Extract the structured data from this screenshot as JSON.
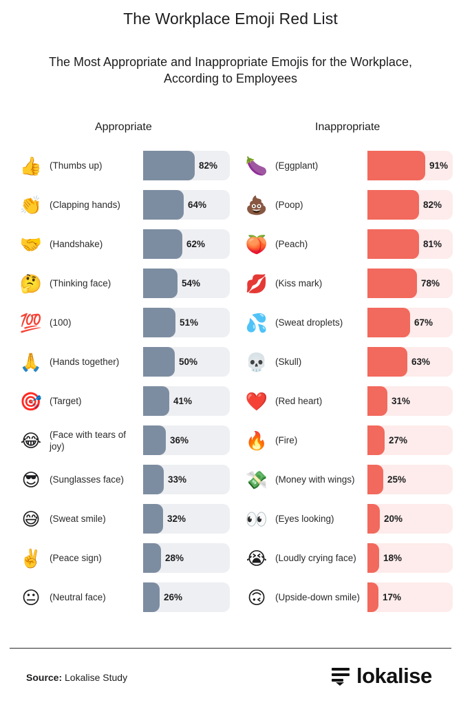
{
  "title": "The Workplace Emoji Red List",
  "subtitle": "The Most Appropriate and Inappropriate Emojis for the Workplace, According to Employees",
  "colors": {
    "appropriate_fill": "#7d8da1",
    "appropriate_track": "#eeeff2",
    "inappropriate_fill": "#f2695d",
    "inappropriate_track": "#fdeceb"
  },
  "chart_data": [
    {
      "type": "bar",
      "title": "Appropriate",
      "categories": [
        "(Thumbs up)",
        "(Clapping hands)",
        "(Handshake)",
        "(Thinking face)",
        "(100)",
        "(Hands together)",
        "(Target)",
        "(Face with tears of joy)",
        "(Sunglasses face)",
        "(Sweat smile)",
        "(Peace sign)",
        "(Neutral face)"
      ],
      "values": [
        82,
        64,
        62,
        54,
        51,
        50,
        41,
        36,
        33,
        32,
        28,
        26
      ],
      "value_labels": [
        "82%",
        "64%",
        "62%",
        "54%",
        "51%",
        "50%",
        "41%",
        "36%",
        "33%",
        "32%",
        "28%",
        "26%"
      ],
      "emojis": [
        "👍",
        "👏",
        "🤝",
        "🤔",
        "💯",
        "🙏",
        "🎯",
        "😂",
        "😎",
        "😅",
        "✌️",
        "😐"
      ],
      "ylim": [
        0,
        100
      ]
    },
    {
      "type": "bar",
      "title": "Inappropriate",
      "categories": [
        "(Eggplant)",
        "(Poop)",
        "(Peach)",
        "(Kiss mark)",
        "(Sweat droplets)",
        "(Skull)",
        "(Red heart)",
        "(Fire)",
        "(Money with wings)",
        "(Eyes looking)",
        "(Loudly crying face)",
        "(Upside-down smile)"
      ],
      "values": [
        91,
        82,
        81,
        78,
        67,
        63,
        31,
        27,
        25,
        20,
        18,
        17
      ],
      "value_labels": [
        "91%",
        "82%",
        "81%",
        "78%",
        "67%",
        "63%",
        "31%",
        "27%",
        "25%",
        "20%",
        "18%",
        "17%"
      ],
      "emojis": [
        "🍆",
        "💩",
        "🍑",
        "💋",
        "💦",
        "💀",
        "❤️",
        "🔥",
        "💸",
        "👀",
        "😭",
        "🙃"
      ],
      "ylim": [
        0,
        100
      ]
    }
  ],
  "footer": {
    "source_label": "Source:",
    "source_text": " Lokalise Study",
    "logo_text": "lokalise"
  }
}
